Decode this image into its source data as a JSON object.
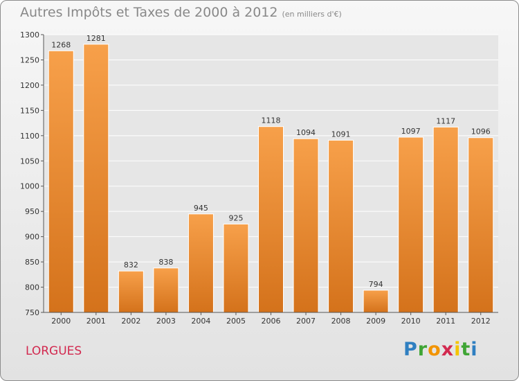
{
  "header": {
    "title": "Autres Impôts et Taxes de 2000 à 2012",
    "unit": "(en milliers d'€)"
  },
  "footer": {
    "commune": "LORGUES",
    "logo": {
      "text": "Proxiti",
      "letters": [
        "P",
        "r",
        "o",
        "x",
        "i",
        "t",
        "i"
      ]
    }
  },
  "colors": {
    "bar": "#f0963a",
    "bar_dark": "#d4721b",
    "axis": "#555555",
    "grid": "#ffffff"
  },
  "chart_data": {
    "type": "bar",
    "title": "Autres Impôts et Taxes de 2000 à 2012",
    "subtitle": "(en milliers d'€)",
    "categories": [
      "2000",
      "2001",
      "2002",
      "2003",
      "2004",
      "2005",
      "2006",
      "2007",
      "2008",
      "2009",
      "2010",
      "2011",
      "2012"
    ],
    "values": [
      1268,
      1281,
      832,
      838,
      945,
      925,
      1118,
      1094,
      1091,
      794,
      1097,
      1117,
      1096
    ],
    "ylim": [
      750,
      1300
    ],
    "yticks": [
      750,
      800,
      850,
      900,
      950,
      1000,
      1050,
      1100,
      1150,
      1200,
      1250,
      1300
    ],
    "grid": true,
    "data_labels": true
  }
}
